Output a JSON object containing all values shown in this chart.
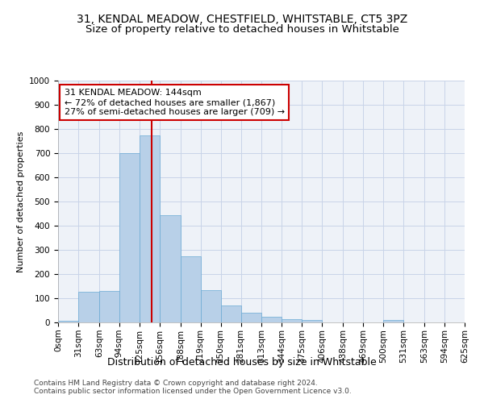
{
  "title": "31, KENDAL MEADOW, CHESTFIELD, WHITSTABLE, CT5 3PZ",
  "subtitle": "Size of property relative to detached houses in Whitstable",
  "xlabel": "Distribution of detached houses by size in Whitstable",
  "ylabel": "Number of detached properties",
  "bin_edges": [
    0,
    31,
    63,
    94,
    125,
    156,
    188,
    219,
    250,
    281,
    313,
    344,
    375,
    406,
    438,
    469,
    500,
    531,
    563,
    594,
    625
  ],
  "heights": [
    8,
    127,
    130,
    700,
    775,
    443,
    275,
    133,
    70,
    40,
    25,
    12,
    10,
    0,
    0,
    0,
    10,
    0,
    0,
    0
  ],
  "tick_labels": [
    "0sqm",
    "31sqm",
    "63sqm",
    "94sqm",
    "125sqm",
    "156sqm",
    "188sqm",
    "219sqm",
    "250sqm",
    "281sqm",
    "313sqm",
    "344sqm",
    "375sqm",
    "406sqm",
    "438sqm",
    "469sqm",
    "500sqm",
    "531sqm",
    "563sqm",
    "594sqm",
    "625sqm"
  ],
  "bar_color": "#b8d0e8",
  "bar_edge_color": "#6aaad4",
  "vline_x": 144,
  "vline_color": "#cc0000",
  "annotation_line1": "31 KENDAL MEADOW: 144sqm",
  "annotation_line2": "← 72% of detached houses are smaller (1,867)",
  "annotation_line3": "27% of semi-detached houses are larger (709) →",
  "annotation_box_color": "#ffffff",
  "annotation_box_edge_color": "#cc0000",
  "ylim": [
    0,
    1000
  ],
  "yticks": [
    0,
    100,
    200,
    300,
    400,
    500,
    600,
    700,
    800,
    900,
    1000
  ],
  "grid_color": "#c8d4e8",
  "bg_color": "#eef2f8",
  "footer1": "Contains HM Land Registry data © Crown copyright and database right 2024.",
  "footer2": "Contains public sector information licensed under the Open Government Licence v3.0.",
  "title_fontsize": 10,
  "subtitle_fontsize": 9.5,
  "xlabel_fontsize": 9,
  "ylabel_fontsize": 8,
  "tick_fontsize": 7.5,
  "annotation_fontsize": 8,
  "footer_fontsize": 6.5
}
